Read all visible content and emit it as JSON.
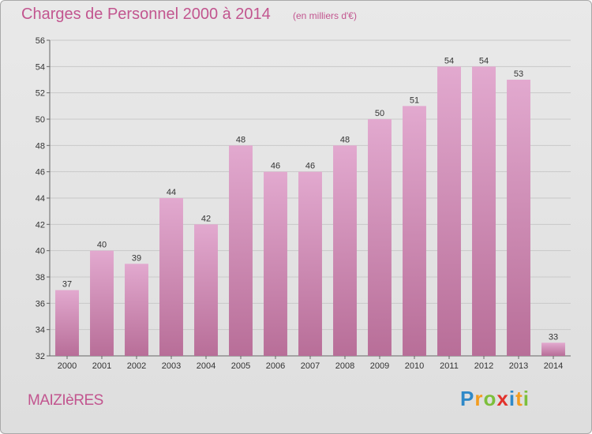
{
  "header": {
    "title": "Charges de Personnel 2000 à 2014",
    "subtitle": "(en milliers d'€)"
  },
  "footer": {
    "city": "MAIZIèRES",
    "logo_letters": [
      "P",
      "r",
      "o",
      "x",
      "i",
      "t",
      "i"
    ],
    "logo_colors": [
      "#2f89c8",
      "#f39c1f",
      "#7cbf3b",
      "#e2322b",
      "#2f89c8",
      "#f39c1f",
      "#7cbf3b"
    ]
  },
  "colors": {
    "bar_top": "#e2a9cf",
    "bar_bottom": "#b86e98",
    "title": "#c2558f"
  },
  "chart_data": {
    "type": "bar",
    "title": "Charges de Personnel 2000 à 2014",
    "subtitle": "(en milliers d'€)",
    "categories": [
      "2000",
      "2001",
      "2002",
      "2003",
      "2004",
      "2005",
      "2006",
      "2007",
      "2008",
      "2009",
      "2010",
      "2011",
      "2012",
      "2013",
      "2014"
    ],
    "values": [
      37,
      40,
      39,
      44,
      42,
      48,
      46,
      46,
      48,
      50,
      51,
      54,
      54,
      53,
      33
    ],
    "ylim": [
      32,
      56
    ],
    "yticks": [
      32,
      34,
      36,
      38,
      40,
      42,
      44,
      46,
      48,
      50,
      52,
      54,
      56
    ],
    "grid": true,
    "data_labels": true
  }
}
